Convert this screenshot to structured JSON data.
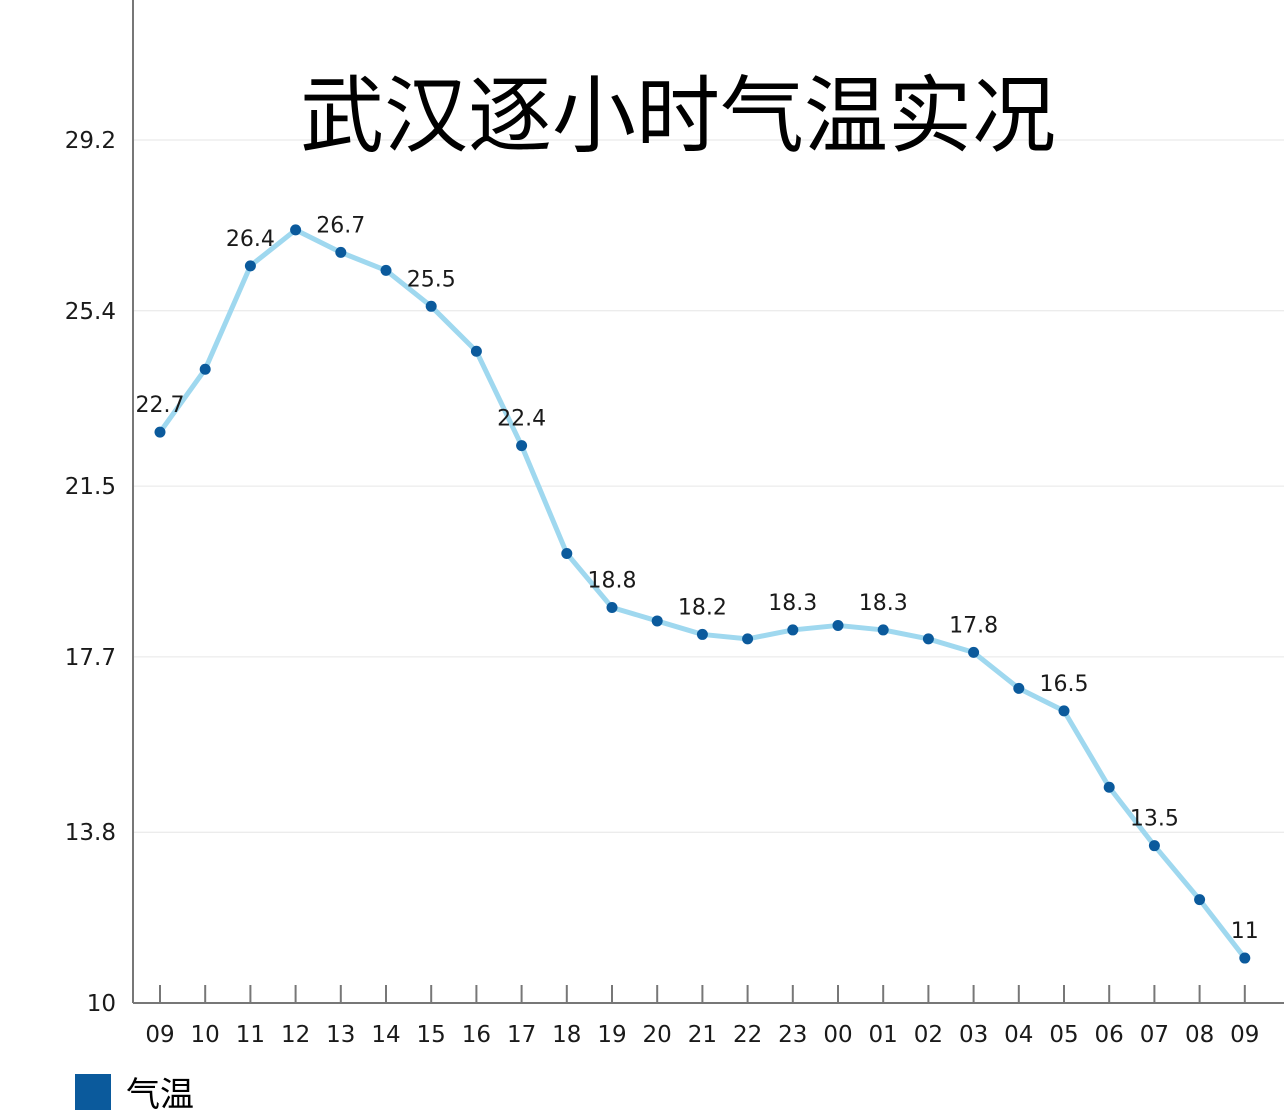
{
  "chart_data": {
    "type": "line",
    "title": "武汉逐小时气温实况",
    "categories": [
      "09",
      "10",
      "11",
      "12",
      "13",
      "14",
      "15",
      "16",
      "17",
      "18",
      "19",
      "20",
      "21",
      "22",
      "23",
      "00",
      "01",
      "02",
      "03",
      "04",
      "05",
      "06",
      "07",
      "08",
      "09"
    ],
    "series": [
      {
        "name": "气温",
        "values": [
          22.7,
          24.1,
          26.4,
          27.2,
          26.7,
          26.3,
          25.5,
          24.5,
          22.4,
          20.0,
          18.8,
          18.5,
          18.2,
          18.1,
          18.3,
          18.4,
          18.3,
          18.1,
          17.8,
          17.0,
          16.5,
          14.8,
          13.5,
          12.3,
          11.0
        ]
      }
    ],
    "data_labels": [
      {
        "index": 0,
        "text": "22.7"
      },
      {
        "index": 2,
        "text": "26.4"
      },
      {
        "index": 4,
        "text": "26.7"
      },
      {
        "index": 6,
        "text": "25.5"
      },
      {
        "index": 8,
        "text": "22.4"
      },
      {
        "index": 10,
        "text": "18.8"
      },
      {
        "index": 12,
        "text": "18.2"
      },
      {
        "index": 14,
        "text": "18.3"
      },
      {
        "index": 16,
        "text": "18.3"
      },
      {
        "index": 18,
        "text": "17.8"
      },
      {
        "index": 20,
        "text": "16.5"
      },
      {
        "index": 22,
        "text": "13.5"
      },
      {
        "index": 24,
        "text": "11"
      }
    ],
    "yticks": [
      {
        "value": 10,
        "label": "10"
      },
      {
        "value": 13.8,
        "label": "13.8"
      },
      {
        "value": 17.7,
        "label": "17.7"
      },
      {
        "value": 21.5,
        "label": "21.5"
      },
      {
        "value": 25.4,
        "label": "25.4"
      },
      {
        "value": 29.2,
        "label": "29.2"
      }
    ],
    "ylim": [
      10,
      29.2
    ],
    "xlabel": "",
    "ylabel": "",
    "grid": true,
    "legend_position": "bottom-left",
    "colors": {
      "line": "#9fd8ef",
      "marker": "#0b5a9c",
      "legend_swatch": "#0b5a9c",
      "axis": "#777777",
      "grid": "#e6e6e6"
    }
  }
}
